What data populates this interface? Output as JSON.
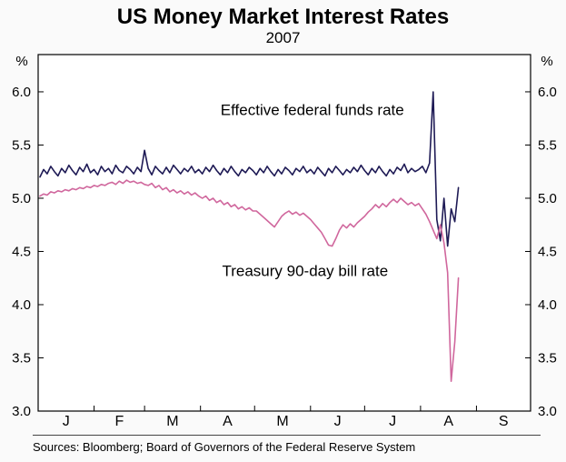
{
  "header": {
    "title": "US Money Market Interest Rates",
    "subtitle": "2007"
  },
  "footer": {
    "sources": "Sources: Bloomberg; Board of Governors of the Federal Reserve System"
  },
  "chart_data": {
    "type": "line",
    "title": "US Money Market Interest Rates",
    "subtitle": "2007",
    "unit_label_left": "%",
    "unit_label_right": "%",
    "ylim": [
      3.0,
      6.35
    ],
    "yticks": [
      3.0,
      3.5,
      4.0,
      4.5,
      5.0,
      5.5,
      6.0
    ],
    "grid": false,
    "legend_position": "inline-annotations",
    "plot_background": "#ffffff",
    "axis_color": "#000000",
    "x_domain_days": [
      0,
      273
    ],
    "month_labels": [
      "J",
      "F",
      "M",
      "A",
      "M",
      "J",
      "J",
      "A",
      "S"
    ],
    "month_centers_day": [
      15.5,
      45,
      74.5,
      105,
      135.5,
      166,
      196.5,
      227.5,
      258
    ],
    "month_boundaries_day": [
      0,
      31,
      59,
      90,
      120,
      151,
      181,
      212,
      243,
      273
    ],
    "series": [
      {
        "id": "fed-funds",
        "name": "Effective federal funds rate",
        "color": "#1e1a55",
        "label": {
          "day": 152,
          "value": 5.78
        },
        "x_start_day": 1,
        "x_end_day": 233,
        "values": [
          5.2,
          5.27,
          5.23,
          5.3,
          5.25,
          5.21,
          5.28,
          5.24,
          5.31,
          5.26,
          5.22,
          5.29,
          5.25,
          5.32,
          5.24,
          5.27,
          5.22,
          5.3,
          5.25,
          5.28,
          5.23,
          5.31,
          5.26,
          5.24,
          5.3,
          5.27,
          5.23,
          5.29,
          5.25,
          5.45,
          5.28,
          5.22,
          5.3,
          5.26,
          5.23,
          5.29,
          5.24,
          5.31,
          5.27,
          5.23,
          5.28,
          5.25,
          5.3,
          5.24,
          5.27,
          5.23,
          5.29,
          5.25,
          5.31,
          5.26,
          5.22,
          5.28,
          5.24,
          5.3,
          5.25,
          5.21,
          5.27,
          5.24,
          5.29,
          5.26,
          5.22,
          5.28,
          5.24,
          5.3,
          5.25,
          5.21,
          5.27,
          5.23,
          5.29,
          5.26,
          5.22,
          5.28,
          5.25,
          5.3,
          5.24,
          5.27,
          5.23,
          5.29,
          5.25,
          5.21,
          5.28,
          5.24,
          5.3,
          5.26,
          5.22,
          5.27,
          5.24,
          5.29,
          5.25,
          5.31,
          5.26,
          5.22,
          5.28,
          5.24,
          5.3,
          5.25,
          5.21,
          5.27,
          5.23,
          5.29,
          5.26,
          5.32,
          5.24,
          5.28,
          5.25,
          5.27,
          5.3,
          5.24,
          5.33,
          6.0,
          4.8,
          4.6,
          5.0,
          4.55,
          4.9,
          4.78,
          5.1
        ]
      },
      {
        "id": "treasury-bill",
        "name": "Treasury 90-day bill rate",
        "color": "#d0679d",
        "label": {
          "day": 148,
          "value": 4.27
        },
        "x_start_day": 1,
        "x_end_day": 233,
        "values": [
          5.02,
          5.04,
          5.03,
          5.06,
          5.05,
          5.07,
          5.06,
          5.08,
          5.07,
          5.09,
          5.08,
          5.1,
          5.09,
          5.11,
          5.1,
          5.12,
          5.11,
          5.13,
          5.12,
          5.14,
          5.15,
          5.13,
          5.16,
          5.14,
          5.17,
          5.15,
          5.16,
          5.14,
          5.15,
          5.13,
          5.12,
          5.14,
          5.1,
          5.12,
          5.08,
          5.1,
          5.06,
          5.08,
          5.05,
          5.07,
          5.04,
          5.06,
          5.03,
          5.05,
          5.02,
          5.0,
          5.02,
          4.98,
          5.0,
          4.96,
          4.98,
          4.94,
          4.96,
          4.92,
          4.94,
          4.9,
          4.92,
          4.89,
          4.91,
          4.88,
          4.88,
          4.85,
          4.82,
          4.79,
          4.76,
          4.73,
          4.78,
          4.83,
          4.86,
          4.88,
          4.85,
          4.87,
          4.84,
          4.86,
          4.83,
          4.8,
          4.76,
          4.72,
          4.68,
          4.62,
          4.56,
          4.55,
          4.62,
          4.7,
          4.75,
          4.72,
          4.76,
          4.73,
          4.77,
          4.8,
          4.83,
          4.87,
          4.9,
          4.94,
          4.91,
          4.95,
          4.92,
          4.96,
          4.99,
          4.96,
          5.0,
          4.97,
          4.94,
          4.96,
          4.93,
          4.95,
          4.9,
          4.85,
          4.78,
          4.7,
          4.62,
          4.75,
          4.58,
          4.3,
          3.28,
          3.65,
          4.25
        ]
      }
    ]
  }
}
